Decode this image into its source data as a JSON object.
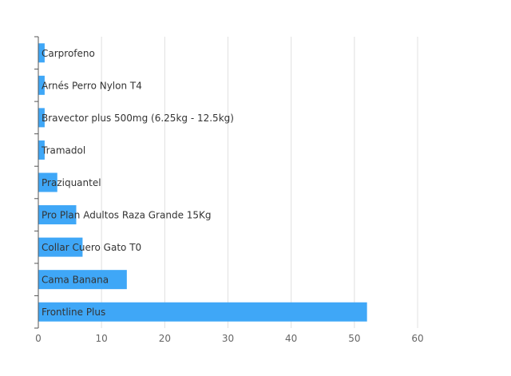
{
  "chart_data": {
    "type": "bar",
    "orientation": "horizontal",
    "categories": [
      "Carprofeno",
      "Arnés Perro Nylon  T4",
      "Bravector plus 500mg (6.25kg - 12.5kg)",
      "Tramadol",
      "Praziquantel",
      "Pro Plan  Adultos Raza Grande 15Kg",
      "Collar Cuero Gato T0",
      "Cama Banana",
      "Frontline Plus"
    ],
    "values": [
      1,
      1,
      1,
      1,
      3,
      6,
      7,
      14,
      52
    ],
    "title": "",
    "xlabel": "",
    "ylabel": "",
    "xlim": [
      0,
      60
    ],
    "xticks": [
      0,
      10,
      20,
      30,
      40,
      50,
      60
    ],
    "grid": true,
    "colors": {
      "bar": "#3fa7f7",
      "grid": "#e0e0e0",
      "axis": "#555555",
      "tick_label": "#666666",
      "bar_label": "#333333"
    }
  }
}
